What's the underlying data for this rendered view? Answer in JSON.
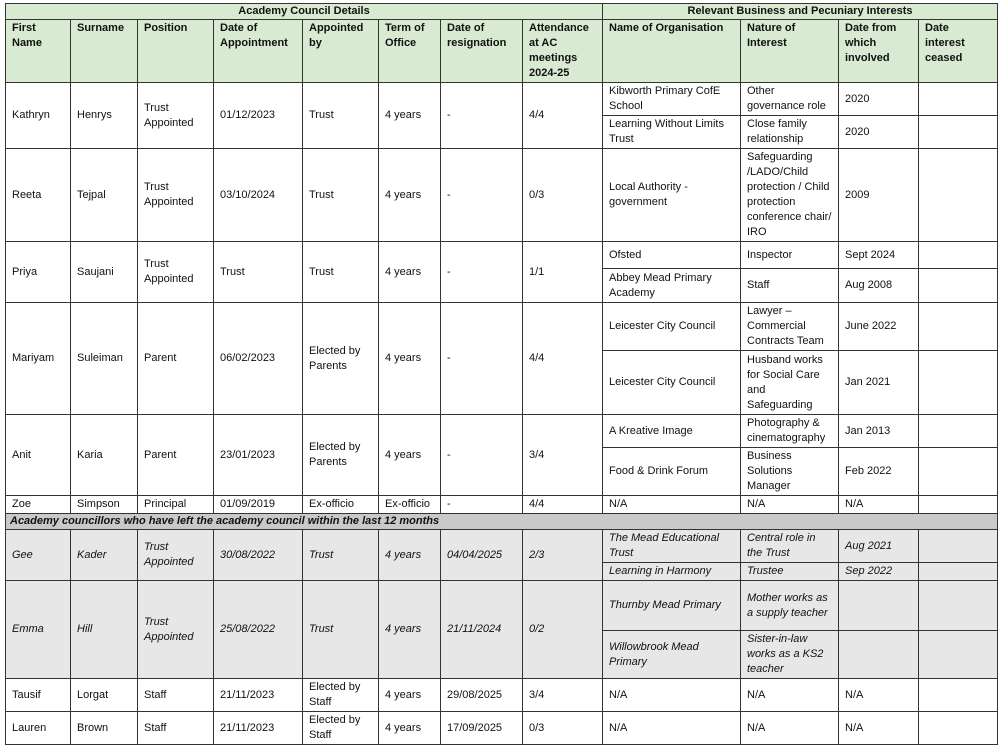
{
  "header": {
    "group_left": "Academy Council Details",
    "group_right": "Relevant Business and Pecuniary Interests",
    "columns": [
      "First Name",
      "Surname",
      "Position",
      "Date of Appointment",
      "Appointed by",
      "Term of Office",
      "Date of resignation",
      "Attendance at AC meetings 2024-25",
      "Name of Organisation",
      "Nature of Interest",
      "Date from which involved",
      "Date interest ceased"
    ]
  },
  "colors": {
    "header_bg": "#d9ead3",
    "left_row_bg": "#e7e7e7",
    "section_bg": "#c9c9c9"
  },
  "members": [
    {
      "first": "Kathryn",
      "surname": "Henrys",
      "position": "Trust Appointed",
      "appointed": "01/12/2023",
      "by": "Trust",
      "term": "4 years",
      "resigned": "-",
      "attendance": "4/4",
      "interests": [
        {
          "org": "Kibworth Primary CofE School",
          "nature": "Other governance role",
          "from": "2020",
          "ceased": ""
        },
        {
          "org": "Learning Without Limits Trust",
          "nature": "Close family relationship",
          "from": "2020",
          "ceased": ""
        }
      ]
    },
    {
      "first": "Reeta",
      "surname": "Tejpal",
      "position": "Trust Appointed",
      "appointed": "03/10/2024",
      "by": "Trust",
      "term": "4 years",
      "resigned": "-",
      "attendance": "0/3",
      "interests": [
        {
          "org": "Local Authority - government",
          "nature": "Safeguarding /LADO/Child protection / Child protection conference chair/ IRO",
          "from": "2009",
          "ceased": ""
        }
      ]
    },
    {
      "first": "Priya",
      "surname": "Saujani",
      "position": "Trust Appointed",
      "appointed": "Trust",
      "by": "Trust",
      "term": "4 years",
      "resigned": "-",
      "attendance": "1/1",
      "interests": [
        {
          "org": "Ofsted",
          "nature": "Inspector",
          "from": "Sept 2024",
          "ceased": ""
        },
        {
          "org": "Abbey Mead Primary Academy",
          "nature": "Staff",
          "from": "Aug 2008",
          "ceased": ""
        }
      ]
    },
    {
      "first": "Mariyam",
      "surname": "Suleiman",
      "position": "Parent",
      "appointed": "06/02/2023",
      "by": "Elected by Parents",
      "term": "4 years",
      "resigned": "-",
      "attendance": "4/4",
      "interests": [
        {
          "org": "Leicester City Council",
          "nature": "Lawyer – Commercial Contracts Team",
          "from": "June 2022",
          "ceased": ""
        },
        {
          "org": "Leicester City Council",
          "nature": "Husband works for Social Care and Safeguarding",
          "from": "Jan 2021",
          "ceased": ""
        }
      ]
    },
    {
      "first": "Anit",
      "surname": "Karia",
      "position": "Parent",
      "appointed": "23/01/2023",
      "by": "Elected by Parents",
      "term": "4 years",
      "resigned": "-",
      "attendance": "3/4",
      "interests": [
        {
          "org": "A Kreative Image",
          "nature": "Photography & cinematography",
          "from": "Jan 2013",
          "ceased": ""
        },
        {
          "org": "Food & Drink Forum",
          "nature": "Business Solutions Manager",
          "from": "Feb 2022",
          "ceased": ""
        }
      ]
    },
    {
      "first": "Zoe",
      "surname": "Simpson",
      "position": "Principal",
      "appointed": "01/09/2019",
      "by": "Ex-officio",
      "term": "Ex-officio",
      "resigned": "-",
      "attendance": "4/4",
      "interests": [
        {
          "org": "N/A",
          "nature": "N/A",
          "from": "N/A",
          "ceased": ""
        }
      ]
    }
  ],
  "section_label": "Academy councillors who have left the academy council within the last 12 months",
  "left_members": [
    {
      "first": "Gee",
      "surname": "Kader",
      "position": "Trust Appointed",
      "appointed": "30/08/2022",
      "by": "Trust",
      "term": "4 years",
      "resigned": "04/04/2025",
      "attendance": "2/3",
      "interests": [
        {
          "org": "The Mead Educational Trust",
          "nature": "Central role in the Trust",
          "from": "Aug 2021",
          "ceased": ""
        },
        {
          "org": "Learning in Harmony",
          "nature": "Trustee",
          "from": "Sep 2022",
          "ceased": ""
        }
      ]
    }
  ],
  "left_members_2": [
    {
      "first": "Emma",
      "surname": "Hill",
      "position": "Trust Appointed",
      "appointed": "25/08/2022",
      "by": "Trust",
      "term": "4 years",
      "resigned": "21/11/2024",
      "attendance": "0/2",
      "italic": true,
      "interests": [
        {
          "org": "Thurnby Mead Primary",
          "nature": "Mother works as a supply teacher",
          "from": "",
          "ceased": ""
        },
        {
          "org": "Willowbrook Mead Primary",
          "nature": "Sister-in-law works as a KS2 teacher",
          "from": "",
          "ceased": ""
        }
      ]
    },
    {
      "first": "Tausif",
      "surname": "Lorgat",
      "position": "Staff",
      "appointed": "21/11/2023",
      "by": "Elected by Staff",
      "term": "4 years",
      "resigned": "29/08/2025",
      "attendance": "3/4",
      "italic": false,
      "interests": [
        {
          "org": "N/A",
          "nature": "N/A",
          "from": "N/A",
          "ceased": ""
        }
      ]
    },
    {
      "first": "Lauren",
      "surname": "Brown",
      "position": "Staff",
      "appointed": "21/11/2023",
      "by": "Elected by Staff",
      "term": "4 years",
      "resigned": "17/09/2025",
      "attendance": "0/3",
      "italic": false,
      "interests": [
        {
          "org": "N/A",
          "nature": "N/A",
          "from": "N/A",
          "ceased": ""
        }
      ]
    }
  ]
}
